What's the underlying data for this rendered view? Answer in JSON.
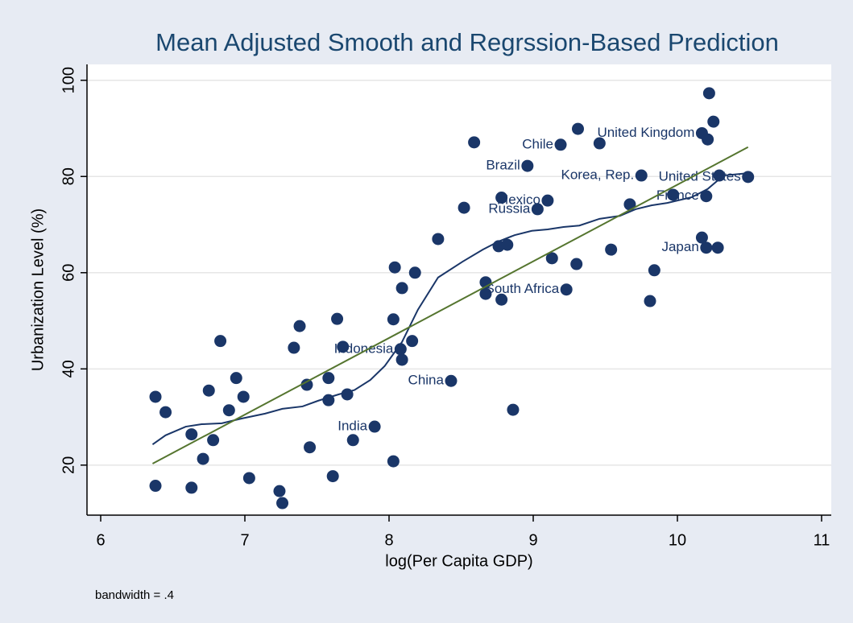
{
  "chart_data": {
    "type": "scatter",
    "title": "Mean Adjusted Smooth and Regrssion-Based Prediction",
    "xlabel": "log(Per Capita GDP)",
    "ylabel": "Urbanization Level (%)",
    "note": "bandwidth = .4",
    "xlim": [
      5.905,
      11.067
    ],
    "ylim": [
      9.6,
      103.3
    ],
    "xticks": [
      6,
      7,
      8,
      9,
      10,
      11
    ],
    "yticks": [
      20,
      40,
      60,
      80,
      100
    ],
    "grid": true,
    "points": {
      "color": "#1a3668",
      "x": [
        6.38,
        6.45,
        6.38,
        6.63,
        6.63,
        6.71,
        6.75,
        6.78,
        6.83,
        6.89,
        6.94,
        6.99,
        7.03,
        7.24,
        7.26,
        7.34,
        7.38,
        7.43,
        7.45,
        7.58,
        7.58,
        7.61,
        7.64,
        7.68,
        7.71,
        7.75,
        7.9,
        8.08,
        8.03,
        8.03,
        8.04,
        8.09,
        8.09,
        8.16,
        8.18,
        8.43,
        8.34,
        8.52,
        9.03,
        9.1,
        8.96,
        9.19,
        9.31,
        10.17,
        10.25,
        9.75,
        10.29,
        10.49,
        10.2,
        9.97,
        10.2,
        10.17,
        10.28,
        9.23,
        8.67,
        8.67,
        8.78,
        8.59,
        8.78,
        8.76,
        8.82,
        8.86,
        9.13,
        9.3,
        9.46,
        9.54,
        9.67,
        9.81,
        9.84,
        10.22,
        10.21
      ],
      "values": [
        34.2,
        31.0,
        15.7,
        26.4,
        15.3,
        21.3,
        35.5,
        25.2,
        45.8,
        31.4,
        38.1,
        34.2,
        17.3,
        14.6,
        12.1,
        44.4,
        48.9,
        36.7,
        23.7,
        38.1,
        33.5,
        17.7,
        50.4,
        44.6,
        34.7,
        25.2,
        28.0,
        44.1,
        20.8,
        50.3,
        61.1,
        41.9,
        56.8,
        45.8,
        60.0,
        37.5,
        67.0,
        73.5,
        73.2,
        75.0,
        82.2,
        86.6,
        89.9,
        89.0,
        91.4,
        80.2,
        80.2,
        79.9,
        75.9,
        76.2,
        65.2,
        67.3,
        65.2,
        56.5,
        58.0,
        55.6,
        54.4,
        87.1,
        75.6,
        65.5,
        65.8,
        31.5,
        63.0,
        61.8,
        86.9,
        64.8,
        74.2,
        54.1,
        60.5,
        97.3,
        87.7
      ],
      "labels": [
        null,
        null,
        null,
        null,
        null,
        null,
        null,
        null,
        null,
        null,
        null,
        null,
        null,
        null,
        null,
        null,
        null,
        null,
        null,
        null,
        null,
        null,
        null,
        null,
        null,
        null,
        "India",
        "Indonesia",
        null,
        null,
        null,
        null,
        null,
        null,
        null,
        "China",
        null,
        null,
        "Russia",
        "Mexico",
        "Brazil",
        "Chile",
        null,
        "United Kingdom",
        null,
        "Korea, Rep.",
        null,
        "United States",
        "France",
        null,
        "Japan",
        null,
        null,
        "South Africa",
        null,
        null,
        null,
        null,
        null,
        null,
        null,
        null,
        null,
        null,
        null,
        null,
        null,
        null,
        null,
        null,
        null
      ]
    },
    "smooth": {
      "color": "#1a3668",
      "x": [
        6.36,
        6.45,
        6.59,
        6.7,
        6.84,
        6.98,
        7.14,
        7.26,
        7.4,
        7.51,
        7.65,
        7.76,
        7.87,
        7.97,
        8.09,
        8.2,
        8.34,
        8.51,
        8.65,
        8.76,
        8.87,
        8.99,
        9.1,
        9.21,
        9.32,
        9.46,
        9.6,
        9.71,
        9.82,
        9.93,
        10.1,
        10.21,
        10.32,
        10.49
      ],
      "values": [
        24.3,
        26.2,
        28.0,
        28.5,
        28.7,
        29.7,
        30.7,
        31.7,
        32.2,
        33.4,
        34.7,
        35.6,
        37.7,
        40.6,
        45.6,
        52.3,
        59.0,
        62.3,
        64.8,
        66.5,
        67.8,
        68.7,
        69.0,
        69.5,
        69.8,
        71.2,
        71.8,
        73.2,
        74.0,
        74.5,
        75.7,
        77.4,
        80.2,
        80.7
      ]
    },
    "fit": {
      "color": "#55752f",
      "x": [
        6.36,
        10.49
      ],
      "values": [
        20.3,
        86.1
      ]
    }
  }
}
